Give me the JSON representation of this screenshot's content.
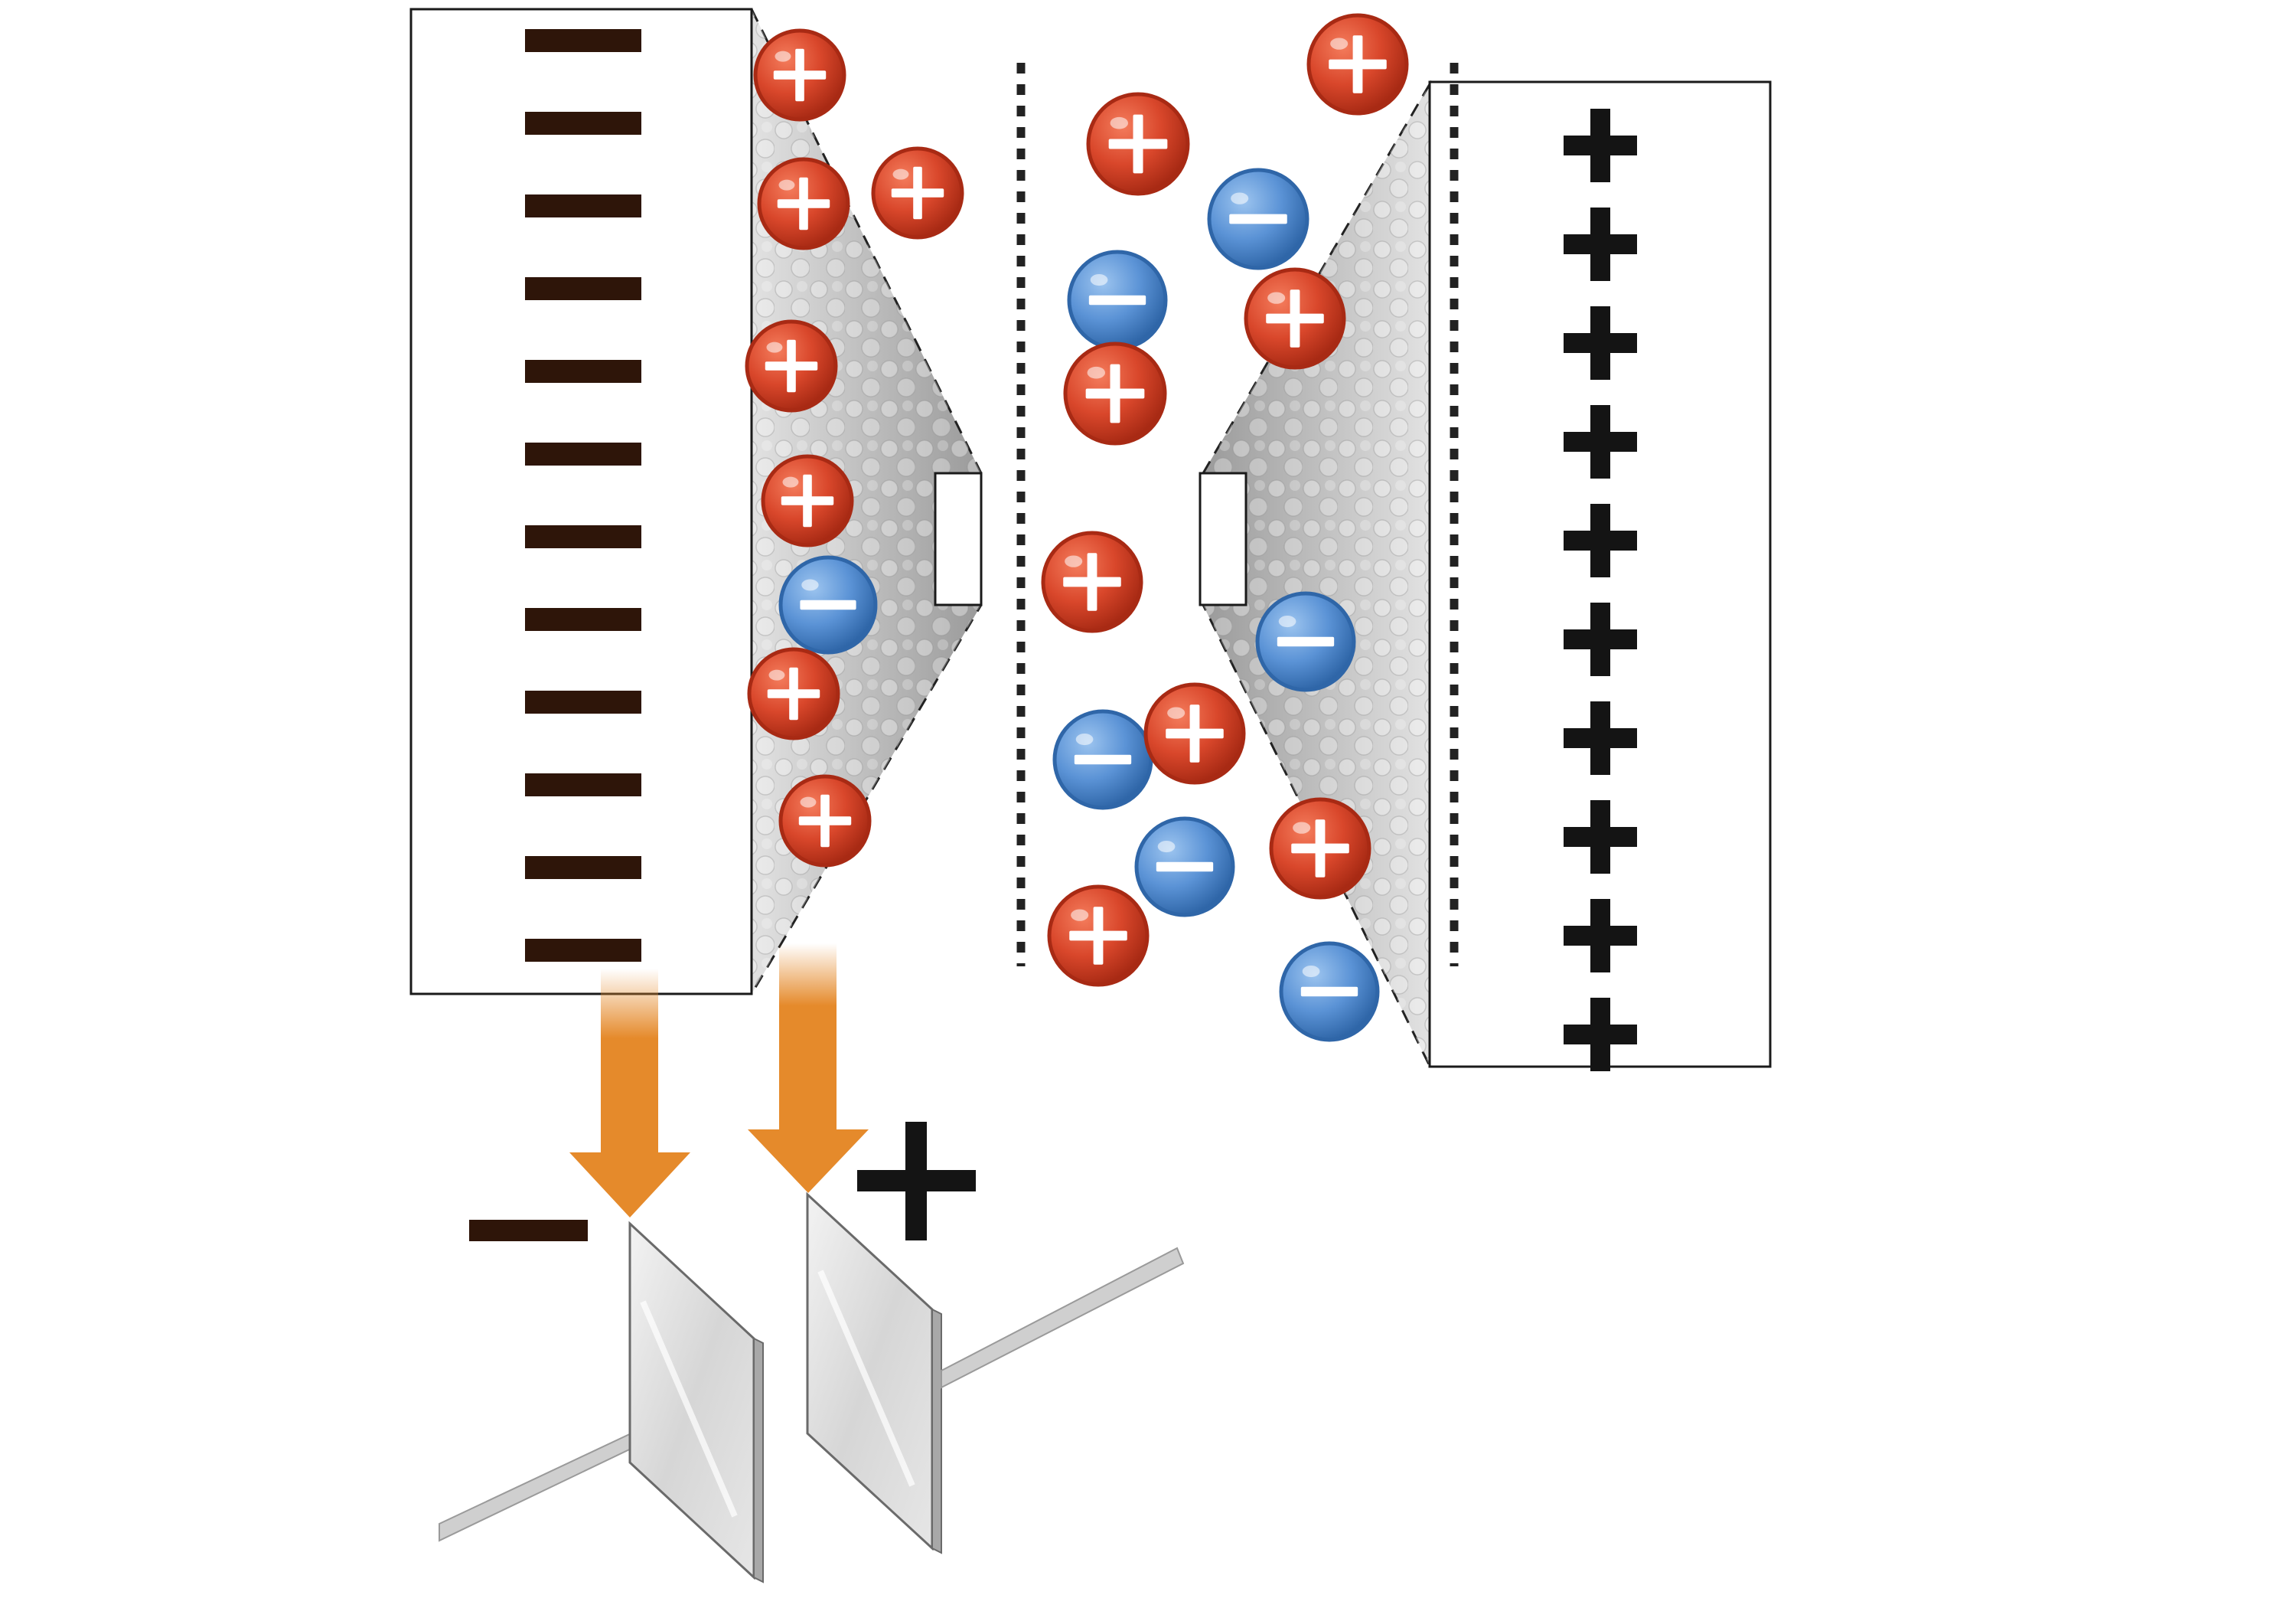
{
  "colors": {
    "cation_fill": "#d9472b",
    "cation_dark": "#a82a14",
    "anion_fill": "#5b93d6",
    "anion_dark": "#2f66a8",
    "negative_sign": "#2e1509",
    "positive_sign": "#141414",
    "arrow": "#e58a2b",
    "electrode_border": "#1a1a1a",
    "material": "#c4c4c4",
    "plate": "#dcdcdc",
    "rod": "#cfcfcf"
  },
  "icons": {
    "cation": "plus-circle-icon",
    "anion": "minus-circle-icon",
    "negative_marker": "minus-sign-icon",
    "positive_marker": "plus-sign-icon",
    "flow_arrow": "arrow-down-icon"
  },
  "charges": {
    "negative_electrode_count": 12,
    "positive_electrode_count": 10
  },
  "ions": {
    "left_layer": [
      "+",
      "+",
      "+",
      "+",
      "+",
      "-",
      "+",
      "+"
    ],
    "left_outer": [
      "+"
    ],
    "separator_gap": [
      "+",
      "-",
      "+",
      "+",
      "-",
      "+",
      "-",
      "+",
      "-"
    ],
    "right_layer": [
      "+",
      "-",
      "+",
      "-",
      "+",
      "-"
    ]
  },
  "capacitor": {
    "negative_terminal": "minus",
    "positive_terminal": "plus"
  }
}
